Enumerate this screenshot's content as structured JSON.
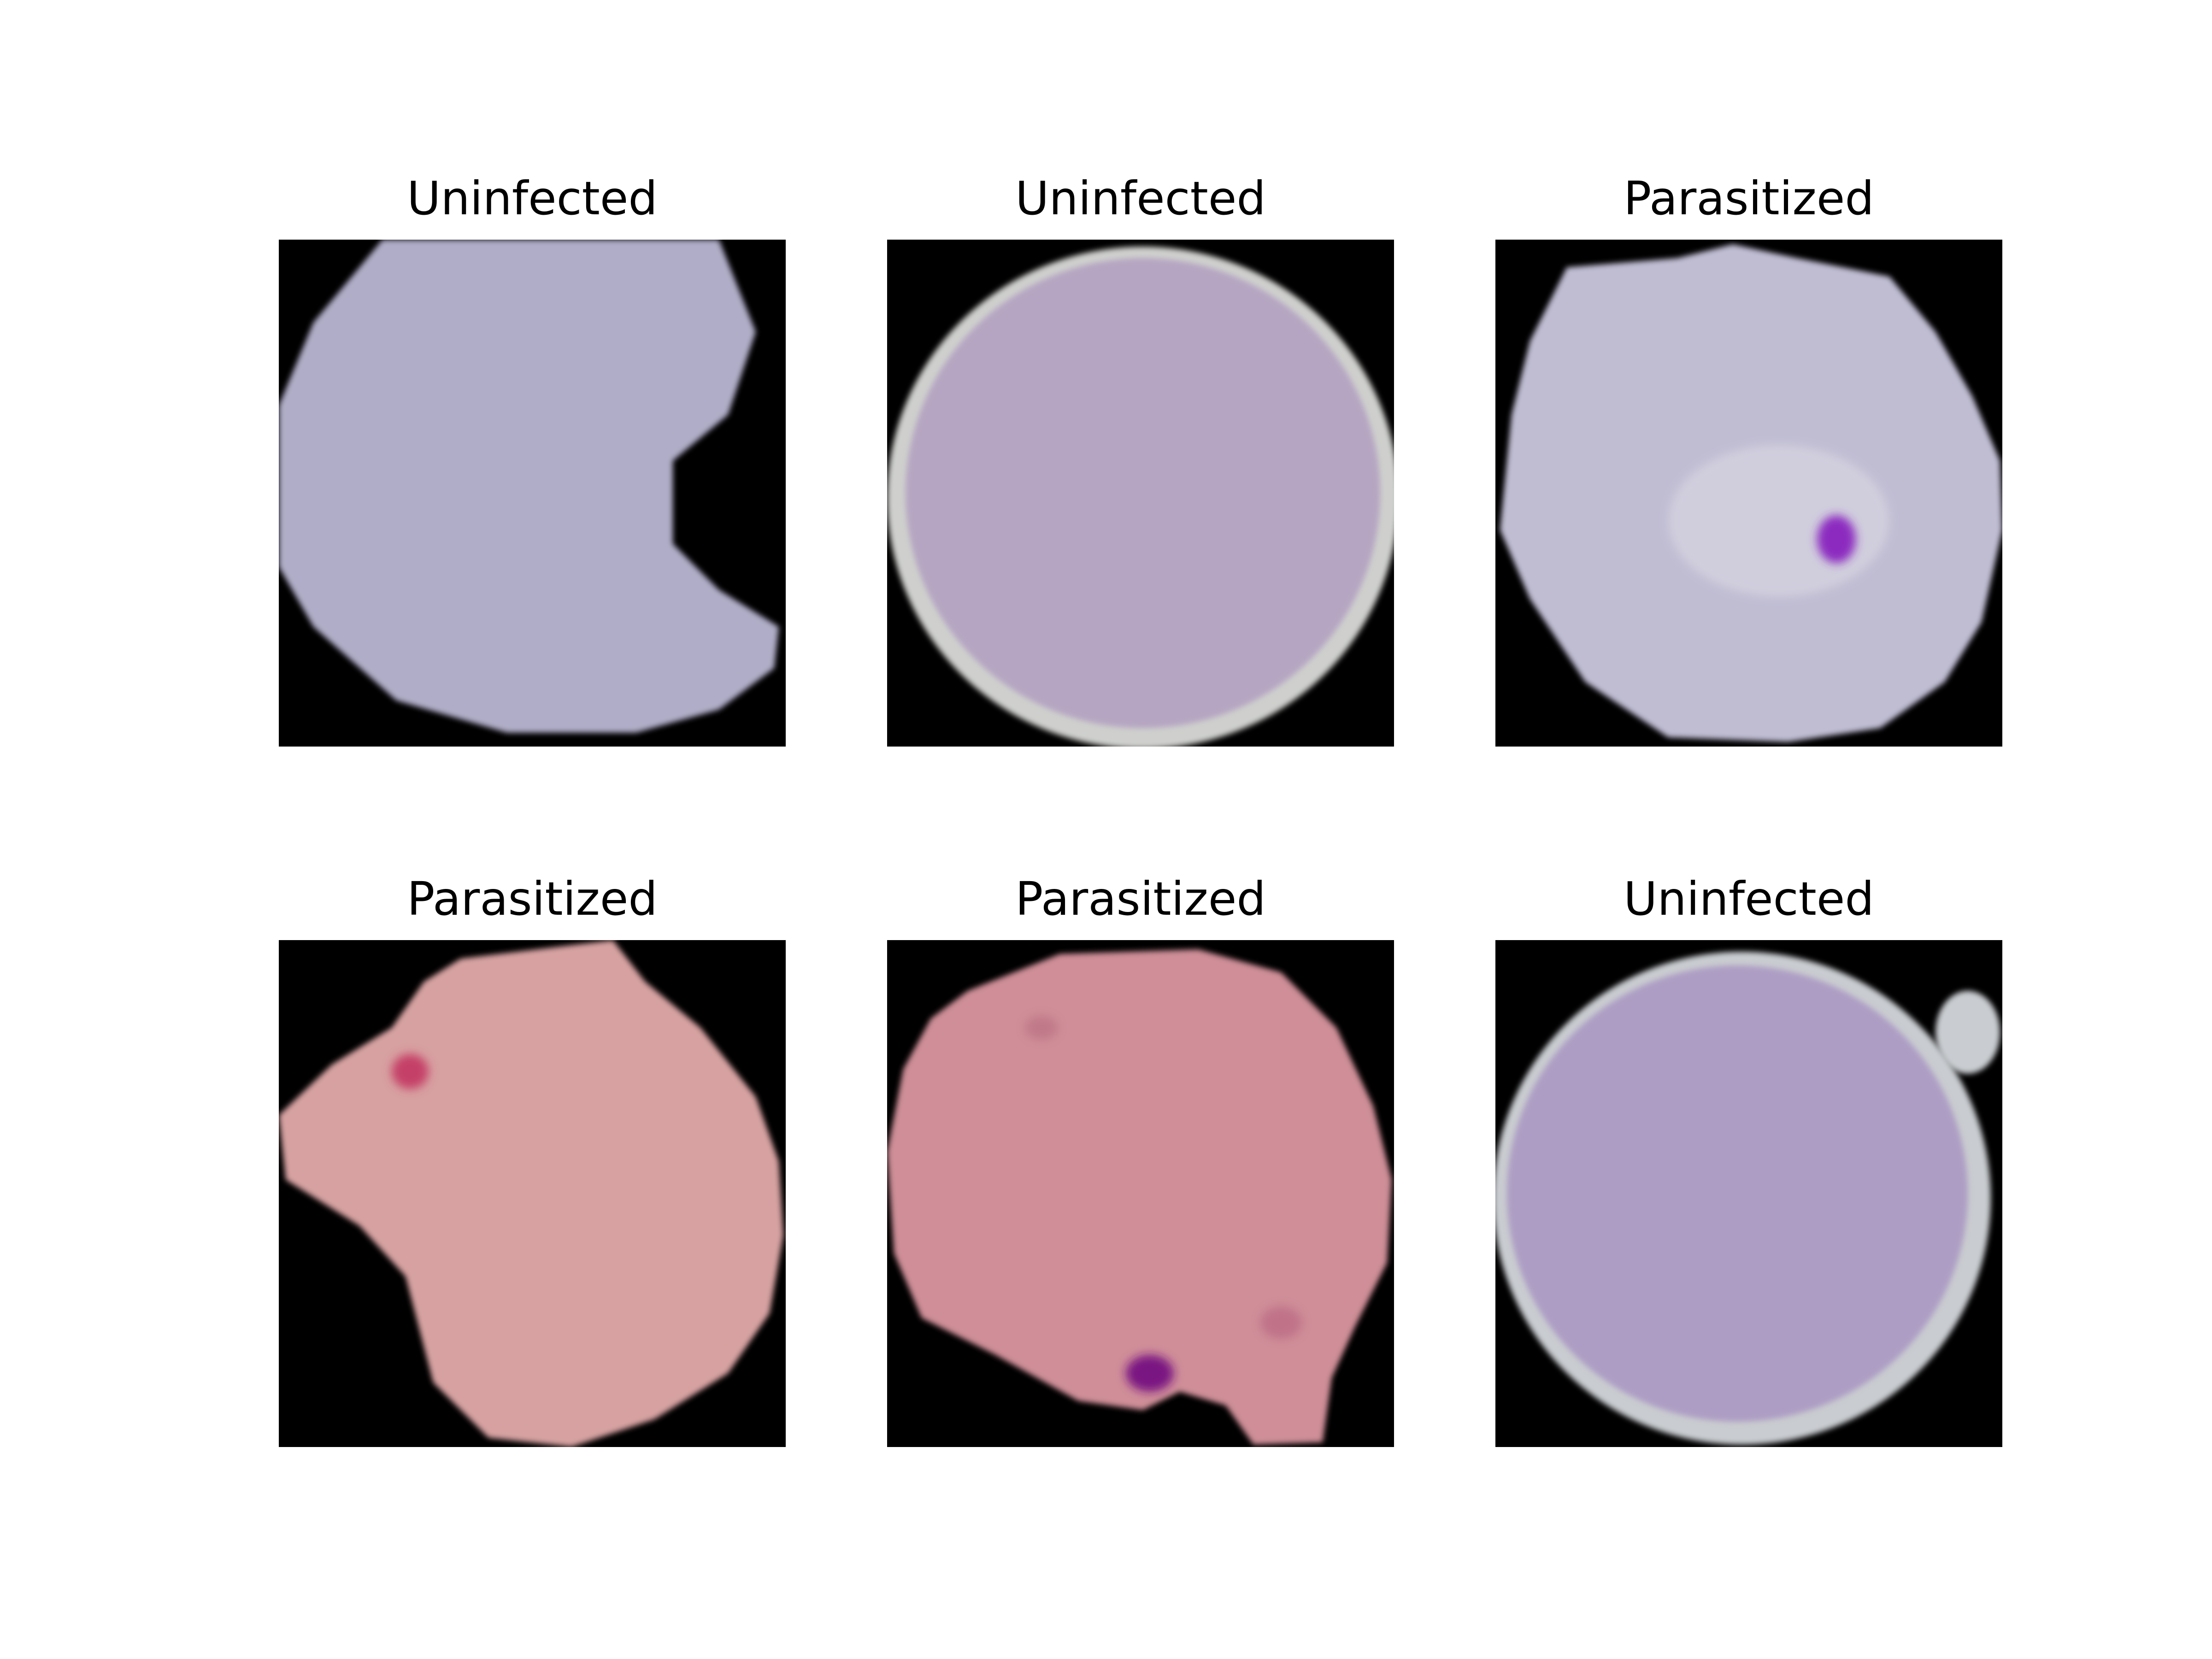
{
  "figure": {
    "background": "#ffffff",
    "panels": [
      {
        "title": "Uninfected",
        "cell_color": "#b0adc8",
        "edge_color": "#c4c2d6",
        "spots": []
      },
      {
        "title": "Uninfected",
        "cell_color": "#b5a5c2",
        "edge_color": "#cfd0cd",
        "spots": []
      },
      {
        "title": "Parasitized",
        "cell_color": "#c0bdd3",
        "edge_color": "#d2d1df",
        "spots": [
          {
            "color": "#8c2bc0"
          }
        ]
      },
      {
        "title": "Parasitized",
        "cell_color": "#d7a1a1",
        "edge_color": "#dfb1ab",
        "spots": [
          {
            "color": "#c54068"
          }
        ]
      },
      {
        "title": "Parasitized",
        "cell_color": "#cf8e98",
        "edge_color": "#e2b3ac",
        "spots": [
          {
            "color": "#7a1682"
          }
        ]
      },
      {
        "title": "Uninfected",
        "cell_color": "#ad9dc4",
        "edge_color": "#c9ccd0",
        "spots": []
      }
    ]
  }
}
